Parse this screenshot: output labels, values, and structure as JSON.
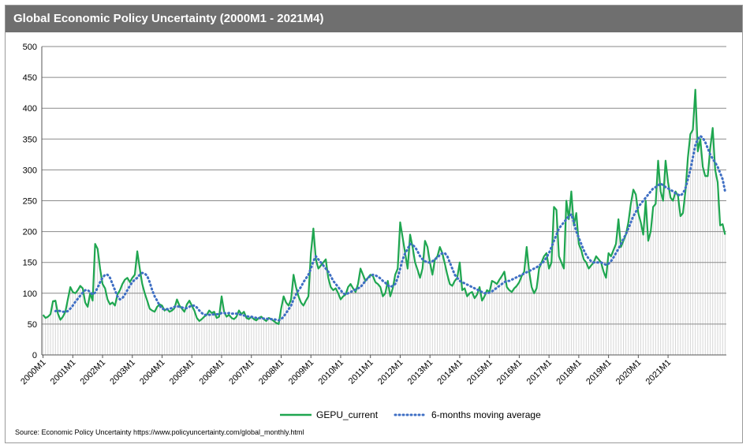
{
  "chart_data": {
    "type": "line",
    "title": "Global Economic Policy Uncertainty (2000M1 - 2021M4)",
    "ylim": [
      0,
      500
    ],
    "yticks": [
      0,
      50,
      100,
      150,
      200,
      250,
      300,
      350,
      400,
      450,
      500
    ],
    "grid": true,
    "legend_placement": "bottom-center",
    "x_start": "2000M1",
    "x_end": "2021M4",
    "x_tick_labels": [
      "2000M1",
      "2001M1",
      "2002M1",
      "2003M1",
      "2004M1",
      "2005M1",
      "2006M1",
      "2007M1",
      "2008M1",
      "2009M1",
      "2010M1",
      "2011M1",
      "2012M1",
      "2013M1",
      "2014M1",
      "2015M1",
      "2016M1",
      "2017M1",
      "2018M1",
      "2019M1",
      "2020M1",
      "2021M1"
    ],
    "series": [
      {
        "name": "GEPU_current",
        "color": "#1fa650",
        "style": "solid",
        "values": [
          65,
          60,
          62,
          66,
          87,
          88,
          67,
          57,
          62,
          70,
          90,
          110,
          102,
          100,
          105,
          112,
          108,
          85,
          78,
          100,
          88,
          180,
          172,
          140,
          115,
          108,
          90,
          82,
          85,
          80,
          98,
          105,
          115,
          122,
          125,
          118,
          125,
          130,
          168,
          140,
          115,
          100,
          88,
          75,
          72,
          70,
          78,
          82,
          80,
          72,
          75,
          70,
          72,
          76,
          90,
          80,
          75,
          70,
          82,
          88,
          80,
          72,
          60,
          55,
          58,
          62,
          65,
          72,
          68,
          70,
          60,
          62,
          95,
          70,
          62,
          65,
          60,
          58,
          62,
          72,
          66,
          70,
          60,
          58,
          62,
          58,
          56,
          60,
          62,
          58,
          55,
          60,
          58,
          55,
          52,
          50,
          75,
          95,
          85,
          80,
          90,
          130,
          110,
          95,
          85,
          80,
          88,
          95,
          165,
          205,
          155,
          140,
          145,
          150,
          155,
          125,
          110,
          105,
          108,
          100,
          90,
          95,
          98,
          110,
          115,
          108,
          102,
          115,
          140,
          130,
          120,
          125,
          130,
          128,
          118,
          115,
          110,
          95,
          100,
          120,
          95,
          108,
          130,
          140,
          215,
          190,
          165,
          140,
          195,
          175,
          150,
          138,
          125,
          140,
          185,
          175,
          150,
          130,
          155,
          160,
          175,
          165,
          148,
          130,
          115,
          112,
          120,
          125,
          150,
          105,
          108,
          95,
          100,
          102,
          92,
          98,
          110,
          88,
          95,
          105,
          102,
          120,
          118,
          115,
          122,
          128,
          135,
          110,
          105,
          102,
          108,
          112,
          118,
          128,
          135,
          175,
          135,
          110,
          100,
          108,
          140,
          150,
          160,
          165,
          140,
          150,
          240,
          235,
          160,
          150,
          140,
          250,
          220,
          265,
          210,
          230,
          180,
          170,
          155,
          150,
          140,
          145,
          150,
          160,
          155,
          150,
          135,
          125,
          165,
          160,
          170,
          180,
          220,
          175,
          185,
          195,
          215,
          245,
          268,
          260,
          230,
          215,
          195,
          250,
          185,
          200,
          240,
          245,
          315,
          265,
          250,
          315,
          280,
          255,
          250,
          265,
          258,
          225,
          230,
          265,
          320,
          358,
          365,
          430,
          330,
          350,
          305,
          290,
          290,
          335,
          368,
          300,
          280,
          210,
          212,
          195
        ]
      },
      {
        "name": "6-months moving average",
        "color": "#3f6fc4",
        "style": "dotted",
        "values": [
          null,
          null,
          null,
          null,
          null,
          71,
          72,
          71,
          70,
          70,
          71,
          75,
          80,
          86,
          91,
          96,
          101,
          105,
          105,
          102,
          98,
          101,
          109,
          118,
          125,
          130,
          130,
          125,
          115,
          105,
          95,
          90,
          92,
          98,
          105,
          112,
          118,
          122,
          125,
          130,
          133,
          132,
          128,
          118,
          105,
          95,
          88,
          80,
          75,
          74,
          74,
          75,
          76,
          78,
          79,
          78,
          77,
          76,
          76,
          78,
          80,
          80,
          77,
          72,
          68,
          65,
          65,
          65,
          65,
          66,
          66,
          66,
          68,
          68,
          67,
          68,
          67,
          67,
          67,
          66,
          65,
          64,
          63,
          62,
          62,
          61,
          60,
          60,
          59,
          59,
          59,
          58,
          58,
          58,
          57,
          56,
          58,
          62,
          68,
          74,
          80,
          90,
          98,
          105,
          110,
          118,
          124,
          130,
          140,
          152,
          160,
          155,
          150,
          145,
          140,
          135,
          128,
          120,
          115,
          110,
          105,
          100,
          98,
          100,
          102,
          104,
          106,
          108,
          110,
          115,
          120,
          125,
          128,
          130,
          129,
          127,
          124,
          120,
          117,
          113,
          110,
          112,
          115,
          125,
          140,
          155,
          165,
          172,
          180,
          178,
          175,
          168,
          160,
          155,
          152,
          150,
          150,
          152,
          155,
          158,
          162,
          165,
          165,
          160,
          150,
          140,
          130,
          125,
          120,
          118,
          116,
          114,
          112,
          110,
          108,
          106,
          104,
          102,
          100,
          100,
          101,
          103,
          106,
          109,
          112,
          115,
          118,
          120,
          120,
          122,
          124,
          126,
          128,
          130,
          132,
          134,
          136,
          138,
          140,
          142,
          145,
          148,
          152,
          158,
          165,
          175,
          185,
          195,
          205,
          210,
          215,
          220,
          225,
          228,
          215,
          200,
          190,
          180,
          170,
          162,
          156,
          152,
          150,
          150,
          150,
          150,
          148,
          146,
          148,
          152,
          158,
          165,
          172,
          180,
          188,
          196,
          205,
          215,
          225,
          232,
          240,
          245,
          250,
          255,
          260,
          265,
          270,
          272,
          275,
          278,
          275,
          272,
          270,
          268,
          265,
          262,
          260,
          258,
          262,
          270,
          285,
          300,
          320,
          340,
          350,
          355,
          352,
          345,
          335,
          325,
          318,
          312,
          305,
          295,
          285,
          265
        ]
      }
    ]
  },
  "footer": {
    "source": "Source: Economic Policy Uncertainty https://www.policyuncertainty.com/global_monthly.html"
  }
}
